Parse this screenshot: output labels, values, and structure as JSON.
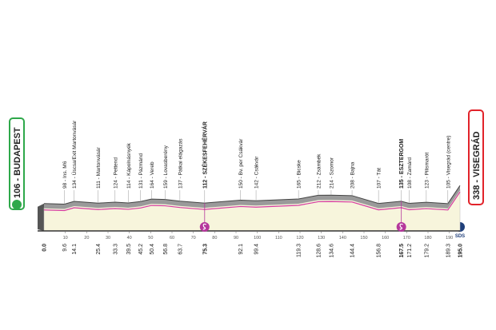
{
  "chart_data": {
    "type": "area",
    "start": "106 - BUDAPEST",
    "finish": "338 - VISEGRÁD",
    "finish_logo_text": "SDS",
    "x": [
      {
        "value": 0,
        "label": "0.0"
      },
      9.6,
      14.1,
      25.4,
      33.3,
      39.5,
      45.2,
      50.4,
      56.8,
      63.7,
      75.3,
      92.1,
      99.4,
      119.3,
      128.6,
      134.6,
      144.4,
      156.8,
      167.5,
      171.2,
      179.2,
      189.3,
      {
        "value": 195,
        "label": "195.0"
      }
    ],
    "values": [
      106,
      98,
      134,
      111,
      124,
      114,
      131,
      164,
      159,
      137,
      112,
      150,
      142,
      165,
      212,
      214,
      208,
      107,
      135,
      108,
      123,
      105,
      338
    ],
    "labels": [
      null,
      "98 - Ins. M6",
      "134 - Úscsa/Exit Martonvásár",
      "111 - Martonvásár",
      "124 - Pettend",
      "114 - Kápolnásnyék",
      "131 - Pázmánd",
      "164 - Vereb",
      "159 - Lovasberény",
      "137 - Pátkai elágazás",
      "112 - SZÉKESFEHÉRVÁR",
      "150 - Bv. per Csákvár",
      "142 - Csákvár",
      "165 - Bicske",
      "212 - Zsámbék",
      "214 - Szomor",
      "208 - Bajna",
      "107 - Tát",
      "135 - ESZTERGOM",
      "108 - Zamárd",
      "123 - Pilismarót",
      "105 - Visegrád (centre)",
      null
    ],
    "sprints": [
      10,
      18
    ],
    "bold_distances": [
      0,
      10,
      18,
      22
    ],
    "xticks": [
      10,
      20,
      30,
      40,
      50,
      60,
      70,
      80,
      90,
      100,
      110,
      120,
      130,
      140,
      150,
      160,
      170,
      180,
      190
    ],
    "color": "#9a9a9a",
    "fill_color": "#f7f5dc",
    "road_color": "#d63aa0",
    "sprint_color": "#b5379c"
  }
}
